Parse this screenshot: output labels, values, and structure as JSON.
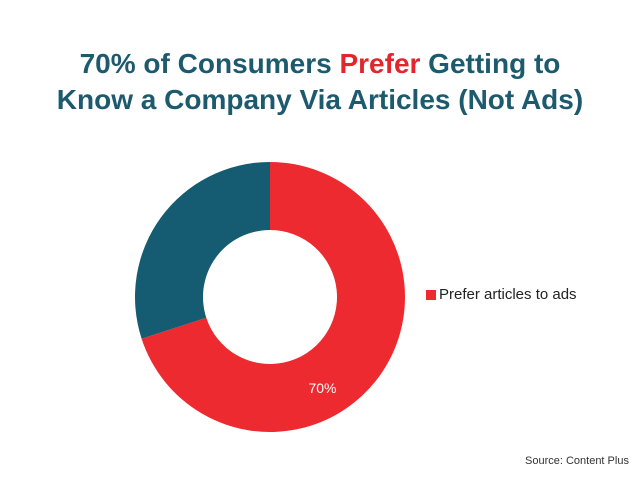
{
  "title": {
    "part1": "70% of Consumers ",
    "highlight": "Prefer",
    "part2": " Getting to",
    "line2": "Know a Company Via Articles (Not Ads)"
  },
  "colors": {
    "title": "#1d5a6e",
    "highlight": "#e3262d",
    "prefer": "#ed2a2f",
    "other": "#155c72"
  },
  "source": "Source: Content Plus",
  "chart_data": {
    "type": "pie",
    "donut": true,
    "slices": [
      {
        "label": "Prefer articles to ads",
        "value": 70,
        "data_label": "70%",
        "color": "#ed2a2f"
      },
      {
        "label": "",
        "value": 30,
        "data_label": "",
        "color": "#155c72"
      }
    ],
    "legend": {
      "position": "right",
      "entries": [
        "Prefer articles to ads"
      ]
    }
  }
}
